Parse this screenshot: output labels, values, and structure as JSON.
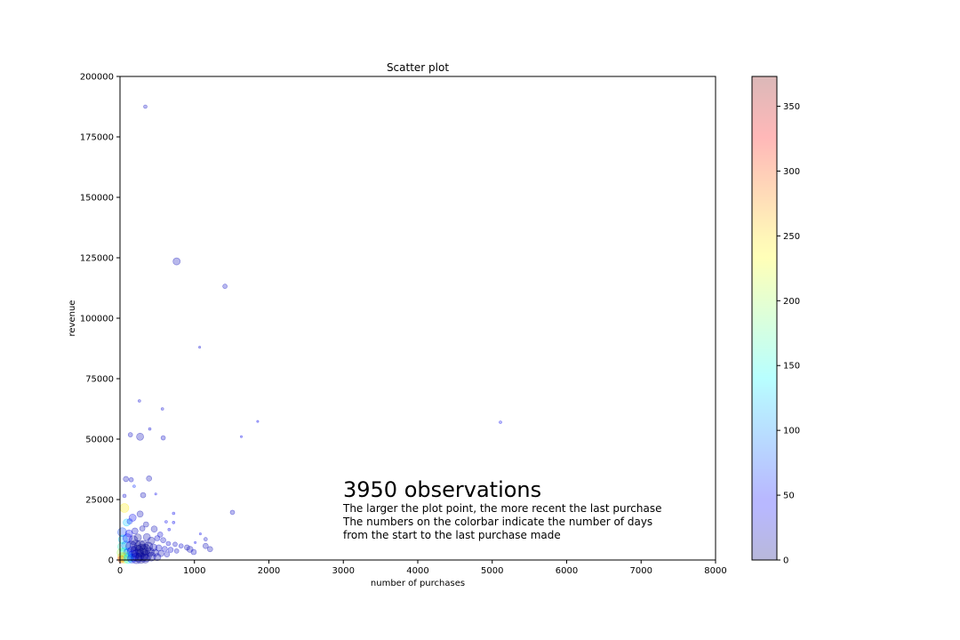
{
  "chart_data": {
    "type": "scatter",
    "title": "Scatter plot",
    "xlabel": "number of purchases",
    "ylabel": "revenue",
    "xlim": [
      0,
      8000
    ],
    "ylim": [
      0,
      200000
    ],
    "xticks": [
      0,
      1000,
      2000,
      3000,
      4000,
      5000,
      6000,
      7000,
      8000
    ],
    "xtick_labels": [
      "0",
      "1000",
      "2000",
      "3000",
      "4000",
      "5000",
      "6000",
      "7000",
      "8000"
    ],
    "yticks": [
      0,
      25000,
      50000,
      75000,
      100000,
      125000,
      150000,
      175000,
      200000
    ],
    "ytick_labels": [
      "0",
      "25000",
      "50000",
      "75000",
      "100000",
      "125000",
      "150000",
      "175000",
      "200000"
    ],
    "grid": false,
    "colorbar": {
      "colormap": "jet",
      "range": [
        0,
        373
      ],
      "ticks": [
        0,
        50,
        100,
        150,
        200,
        250,
        300,
        350
      ],
      "tick_labels": [
        "0",
        "50",
        "100",
        "150",
        "200",
        "250",
        "300",
        "350"
      ]
    },
    "annotation": {
      "headline": "3950 observations",
      "lines": [
        "The larger the plot point, the more recent the last purchase",
        "The numbers on the colorbar indicate the number of days",
        "from the start to the last purchase made"
      ]
    },
    "points": [
      {
        "x": 340,
        "y": 187500,
        "days": 25,
        "size": 2
      },
      {
        "x": 760,
        "y": 123500,
        "days": 20,
        "size": 4
      },
      {
        "x": 1410,
        "y": 113200,
        "days": 25,
        "size": 2.5
      },
      {
        "x": 1070,
        "y": 88000,
        "days": 30,
        "size": 1.2
      },
      {
        "x": 260,
        "y": 65800,
        "days": 30,
        "size": 1.5
      },
      {
        "x": 570,
        "y": 62500,
        "days": 30,
        "size": 1.5
      },
      {
        "x": 1850,
        "y": 57300,
        "days": 40,
        "size": 1.2
      },
      {
        "x": 5110,
        "y": 57000,
        "days": 40,
        "size": 1.5
      },
      {
        "x": 400,
        "y": 54200,
        "days": 30,
        "size": 1.5
      },
      {
        "x": 140,
        "y": 51800,
        "days": 25,
        "size": 2.5
      },
      {
        "x": 270,
        "y": 51000,
        "days": 20,
        "size": 4
      },
      {
        "x": 580,
        "y": 50500,
        "days": 25,
        "size": 2.5
      },
      {
        "x": 1630,
        "y": 51000,
        "days": 40,
        "size": 1.2
      },
      {
        "x": 80,
        "y": 33500,
        "days": 20,
        "size": 3
      },
      {
        "x": 150,
        "y": 33200,
        "days": 25,
        "size": 2.5
      },
      {
        "x": 390,
        "y": 33700,
        "days": 20,
        "size": 3
      },
      {
        "x": 60,
        "y": 26500,
        "days": 30,
        "size": 2
      },
      {
        "x": 310,
        "y": 26800,
        "days": 20,
        "size": 3
      },
      {
        "x": 480,
        "y": 27300,
        "days": 40,
        "size": 1.2
      },
      {
        "x": 190,
        "y": 30500,
        "days": 60,
        "size": 1.5
      },
      {
        "x": 1510,
        "y": 19700,
        "days": 25,
        "size": 2.5
      },
      {
        "x": 60,
        "y": 21500,
        "days": 240,
        "size": 5
      },
      {
        "x": 170,
        "y": 17500,
        "days": 40,
        "size": 4
      },
      {
        "x": 270,
        "y": 19000,
        "days": 20,
        "size": 3.5
      },
      {
        "x": 720,
        "y": 19300,
        "days": 40,
        "size": 1.5
      },
      {
        "x": 90,
        "y": 15500,
        "days": 120,
        "size": 4
      },
      {
        "x": 130,
        "y": 16000,
        "days": 60,
        "size": 3
      },
      {
        "x": 350,
        "y": 14700,
        "days": 20,
        "size": 3
      },
      {
        "x": 620,
        "y": 15800,
        "days": 40,
        "size": 1.5
      },
      {
        "x": 720,
        "y": 15500,
        "days": 40,
        "size": 1.5
      },
      {
        "x": 30,
        "y": 11500,
        "days": 70,
        "size": 5
      },
      {
        "x": 120,
        "y": 11000,
        "days": 40,
        "size": 4
      },
      {
        "x": 200,
        "y": 12000,
        "days": 25,
        "size": 3.5
      },
      {
        "x": 300,
        "y": 13000,
        "days": 20,
        "size": 3
      },
      {
        "x": 460,
        "y": 12800,
        "days": 20,
        "size": 3.5
      },
      {
        "x": 540,
        "y": 10500,
        "days": 30,
        "size": 3
      },
      {
        "x": 660,
        "y": 12600,
        "days": 40,
        "size": 1.5
      },
      {
        "x": 1080,
        "y": 10800,
        "days": 40,
        "size": 1.2
      },
      {
        "x": 1150,
        "y": 8600,
        "days": 25,
        "size": 2
      },
      {
        "x": 40,
        "y": 8500,
        "days": 120,
        "size": 5
      },
      {
        "x": 100,
        "y": 9000,
        "days": 45,
        "size": 5
      },
      {
        "x": 180,
        "y": 8200,
        "days": 15,
        "size": 5
      },
      {
        "x": 240,
        "y": 9300,
        "days": 10,
        "size": 4
      },
      {
        "x": 360,
        "y": 9500,
        "days": 20,
        "size": 4
      },
      {
        "x": 420,
        "y": 8000,
        "days": 15,
        "size": 4
      },
      {
        "x": 500,
        "y": 9000,
        "days": 30,
        "size": 3
      },
      {
        "x": 580,
        "y": 8200,
        "days": 25,
        "size": 3
      },
      {
        "x": 650,
        "y": 6800,
        "days": 30,
        "size": 2.5
      },
      {
        "x": 740,
        "y": 6500,
        "days": 25,
        "size": 2.5
      },
      {
        "x": 820,
        "y": 5800,
        "days": 30,
        "size": 2.5
      },
      {
        "x": 900,
        "y": 5200,
        "days": 20,
        "size": 3
      },
      {
        "x": 1010,
        "y": 7200,
        "days": 40,
        "size": 1.2
      },
      {
        "x": 1150,
        "y": 5800,
        "days": 20,
        "size": 3
      },
      {
        "x": 1210,
        "y": 4500,
        "days": 20,
        "size": 3
      },
      {
        "x": 30,
        "y": 5500,
        "days": 160,
        "size": 5
      },
      {
        "x": 80,
        "y": 6000,
        "days": 90,
        "size": 5
      },
      {
        "x": 150,
        "y": 5600,
        "days": 20,
        "size": 6
      },
      {
        "x": 210,
        "y": 6000,
        "days": 10,
        "size": 6
      },
      {
        "x": 270,
        "y": 5800,
        "days": 5,
        "size": 6
      },
      {
        "x": 320,
        "y": 6200,
        "days": 10,
        "size": 5
      },
      {
        "x": 380,
        "y": 5600,
        "days": 10,
        "size": 5
      },
      {
        "x": 450,
        "y": 5200,
        "days": 20,
        "size": 4
      },
      {
        "x": 520,
        "y": 5000,
        "days": 25,
        "size": 3.5
      },
      {
        "x": 600,
        "y": 4600,
        "days": 30,
        "size": 3
      },
      {
        "x": 680,
        "y": 4200,
        "days": 30,
        "size": 3
      },
      {
        "x": 760,
        "y": 3700,
        "days": 25,
        "size": 2.5
      },
      {
        "x": 940,
        "y": 4400,
        "days": 20,
        "size": 3.5
      },
      {
        "x": 990,
        "y": 3300,
        "days": 25,
        "size": 3
      },
      {
        "x": 20,
        "y": 3000,
        "days": 200,
        "size": 5
      },
      {
        "x": 60,
        "y": 3200,
        "days": 140,
        "size": 5
      },
      {
        "x": 110,
        "y": 3000,
        "days": 70,
        "size": 5
      },
      {
        "x": 170,
        "y": 3400,
        "days": 30,
        "size": 6
      },
      {
        "x": 230,
        "y": 3600,
        "days": 5,
        "size": 7
      },
      {
        "x": 290,
        "y": 3900,
        "days": 2,
        "size": 7
      },
      {
        "x": 340,
        "y": 4300,
        "days": 5,
        "size": 6
      },
      {
        "x": 400,
        "y": 3300,
        "days": 10,
        "size": 5
      },
      {
        "x": 470,
        "y": 3000,
        "days": 15,
        "size": 4
      },
      {
        "x": 550,
        "y": 2700,
        "days": 20,
        "size": 3.5
      },
      {
        "x": 630,
        "y": 2300,
        "days": 25,
        "size": 3
      },
      {
        "x": 30,
        "y": 1200,
        "days": 260,
        "size": 5
      },
      {
        "x": 70,
        "y": 1500,
        "days": 190,
        "size": 5
      },
      {
        "x": 120,
        "y": 1300,
        "days": 110,
        "size": 5
      },
      {
        "x": 180,
        "y": 1700,
        "days": 50,
        "size": 6
      },
      {
        "x": 240,
        "y": 1900,
        "days": 10,
        "size": 7
      },
      {
        "x": 300,
        "y": 2100,
        "days": 3,
        "size": 7
      },
      {
        "x": 350,
        "y": 1600,
        "days": 8,
        "size": 6
      },
      {
        "x": 420,
        "y": 1400,
        "days": 15,
        "size": 5
      },
      {
        "x": 500,
        "y": 1200,
        "days": 20,
        "size": 4
      },
      {
        "x": 20,
        "y": 300,
        "days": 300,
        "size": 4
      },
      {
        "x": 60,
        "y": 500,
        "days": 220,
        "size": 5
      },
      {
        "x": 110,
        "y": 400,
        "days": 140,
        "size": 5
      },
      {
        "x": 160,
        "y": 600,
        "days": 60,
        "size": 5
      },
      {
        "x": 220,
        "y": 700,
        "days": 20,
        "size": 6
      },
      {
        "x": 280,
        "y": 800,
        "days": 8,
        "size": 6
      },
      {
        "x": 340,
        "y": 600,
        "days": 12,
        "size": 5
      }
    ]
  }
}
